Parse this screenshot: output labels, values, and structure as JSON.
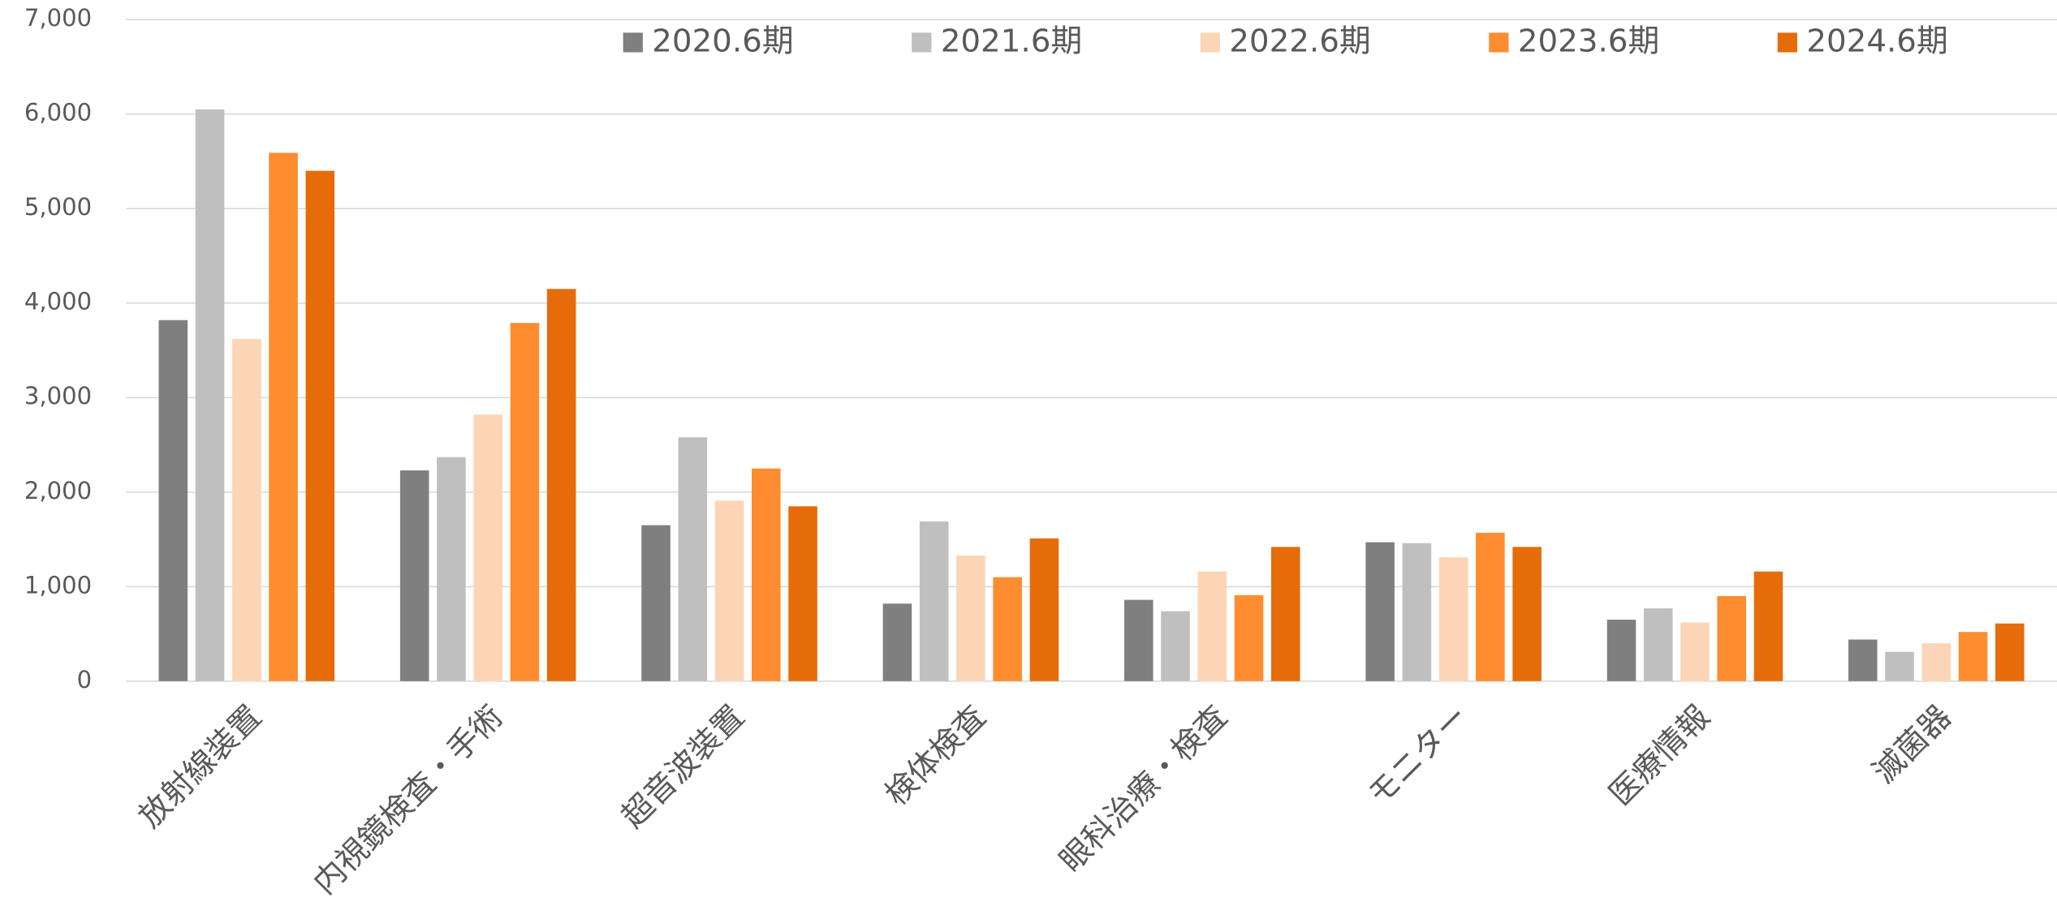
{
  "chart_data": {
    "type": "bar",
    "categories": [
      "放射線装置",
      "内視鏡検査・手術",
      "超音波装置",
      "検体検査",
      "眼科治療・検査",
      "モニター",
      "医療情報",
      "滅菌器"
    ],
    "series": [
      {
        "name": "2020.6期",
        "color": "#7f7f7f",
        "values": [
          3820,
          2230,
          1650,
          820,
          860,
          1470,
          650,
          440
        ]
      },
      {
        "name": "2021.6期",
        "color": "#bfbfbf",
        "values": [
          6050,
          2370,
          2580,
          1690,
          740,
          1460,
          770,
          310
        ]
      },
      {
        "name": "2022.6期",
        "color": "#fbd5b5",
        "values": [
          3620,
          2820,
          1910,
          1330,
          1160,
          1310,
          620,
          400
        ]
      },
      {
        "name": "2023.6期",
        "color": "#ff8c2e",
        "values": [
          5590,
          3790,
          2250,
          1100,
          910,
          1570,
          900,
          520
        ]
      },
      {
        "name": "2024.6期",
        "color": "#e66c0a",
        "values": [
          5400,
          4150,
          1850,
          1510,
          1420,
          1420,
          1160,
          610
        ]
      }
    ],
    "ylim": [
      0,
      7000
    ],
    "yticks": [
      0,
      {
        "value": 1000,
        "label": "1,000"
      },
      {
        "value": 2000,
        "label": "2,000"
      },
      {
        "value": 3000,
        "label": "3,000"
      },
      {
        "value": 4000,
        "label": "4,000"
      },
      {
        "value": 5000,
        "label": "5,000"
      },
      {
        "value": 6000,
        "label": "6,000"
      },
      {
        "value": 7000,
        "label": "7,000"
      }
    ],
    "grid": true,
    "legend": "top"
  }
}
